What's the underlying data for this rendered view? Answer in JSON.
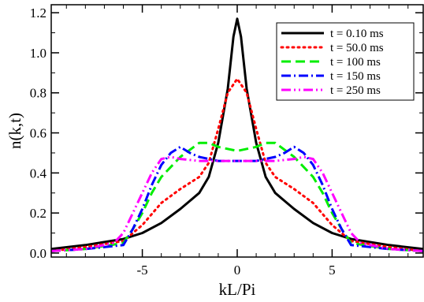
{
  "chart_data": {
    "type": "line",
    "title": "",
    "xlabel": "kL/Pi",
    "ylabel": "n(k,t)",
    "xlim": [
      -9.8,
      9.8
    ],
    "ylim": [
      -0.02,
      1.24
    ],
    "x_ticks": [
      -5,
      0,
      5
    ],
    "x_tick_labels": [
      "-5",
      "0",
      "5"
    ],
    "y_ticks": [
      0.0,
      0.2,
      0.4,
      0.6,
      0.8,
      1.0,
      1.2
    ],
    "y_tick_labels": [
      "0.0",
      "0.2",
      "0.4",
      "0.6",
      "0.8",
      "1.0",
      "1.2"
    ],
    "grid": false,
    "legend_position": "top-right",
    "series": [
      {
        "name": "t = 0.10 ms",
        "color": "#000000",
        "dash": "solid",
        "x": [
          -9.8,
          -8,
          -6,
          -5,
          -4,
          -3,
          -2.5,
          -2,
          -1.5,
          -1,
          -0.5,
          -0.2,
          0,
          0.2,
          0.5,
          1,
          1.5,
          2,
          2.5,
          3,
          4,
          5,
          6,
          8,
          9.8
        ],
        "y": [
          0.02,
          0.04,
          0.07,
          0.1,
          0.15,
          0.22,
          0.26,
          0.3,
          0.38,
          0.55,
          0.82,
          1.08,
          1.17,
          1.08,
          0.82,
          0.55,
          0.38,
          0.3,
          0.26,
          0.22,
          0.15,
          0.1,
          0.07,
          0.04,
          0.02
        ]
      },
      {
        "name": "t = 50.0 ms",
        "color": "#ff0000",
        "dash": "dotted",
        "x": [
          -9.8,
          -8,
          -6,
          -5,
          -4,
          -3,
          -2,
          -1.5,
          -1,
          -0.5,
          0,
          0.5,
          1,
          1.5,
          2,
          3,
          4,
          5,
          6,
          8,
          9.8
        ],
        "y": [
          0.01,
          0.03,
          0.06,
          0.14,
          0.25,
          0.32,
          0.38,
          0.45,
          0.62,
          0.8,
          0.87,
          0.8,
          0.62,
          0.45,
          0.38,
          0.32,
          0.25,
          0.14,
          0.06,
          0.03,
          0.01
        ]
      },
      {
        "name": "t = 100 ms",
        "color": "#00ee00",
        "dash": "dashed",
        "x": [
          -9.8,
          -8,
          -6,
          -5.5,
          -5,
          -4.5,
          -4,
          -3,
          -2,
          -1.5,
          -1,
          0,
          1,
          1.5,
          2,
          3,
          4,
          4.5,
          5,
          5.5,
          6,
          8,
          9.8
        ],
        "y": [
          0.01,
          0.02,
          0.05,
          0.12,
          0.2,
          0.3,
          0.38,
          0.48,
          0.55,
          0.55,
          0.53,
          0.51,
          0.53,
          0.55,
          0.55,
          0.48,
          0.38,
          0.3,
          0.2,
          0.12,
          0.05,
          0.02,
          0.01
        ]
      },
      {
        "name": "t = 150 ms",
        "color": "#0000ff",
        "dash": "dashdot",
        "x": [
          -9.8,
          -8,
          -6,
          -5.5,
          -5,
          -4.5,
          -4,
          -3.5,
          -3,
          -2.5,
          -2,
          -1,
          0,
          1,
          2,
          2.5,
          3,
          3.5,
          4,
          4.5,
          5,
          5.5,
          6,
          8,
          9.8
        ],
        "y": [
          0.01,
          0.02,
          0.04,
          0.12,
          0.22,
          0.34,
          0.44,
          0.5,
          0.53,
          0.5,
          0.48,
          0.46,
          0.46,
          0.46,
          0.48,
          0.5,
          0.53,
          0.5,
          0.44,
          0.34,
          0.22,
          0.12,
          0.04,
          0.02,
          0.01
        ]
      },
      {
        "name": "t = 250 ms",
        "color": "#ff00ff",
        "dash": "dashdotdot",
        "x": [
          -9.8,
          -8,
          -6.5,
          -6,
          -5.5,
          -5,
          -4.5,
          -4,
          -3.5,
          -3,
          -2,
          -1,
          0,
          1,
          2,
          3,
          3.5,
          4,
          4.5,
          5,
          5.5,
          6,
          6.5,
          8,
          9.8
        ],
        "y": [
          0.01,
          0.02,
          0.05,
          0.1,
          0.2,
          0.3,
          0.4,
          0.47,
          0.48,
          0.47,
          0.46,
          0.46,
          0.46,
          0.46,
          0.46,
          0.47,
          0.48,
          0.47,
          0.4,
          0.3,
          0.2,
          0.1,
          0.05,
          0.02,
          0.01
        ]
      }
    ]
  }
}
